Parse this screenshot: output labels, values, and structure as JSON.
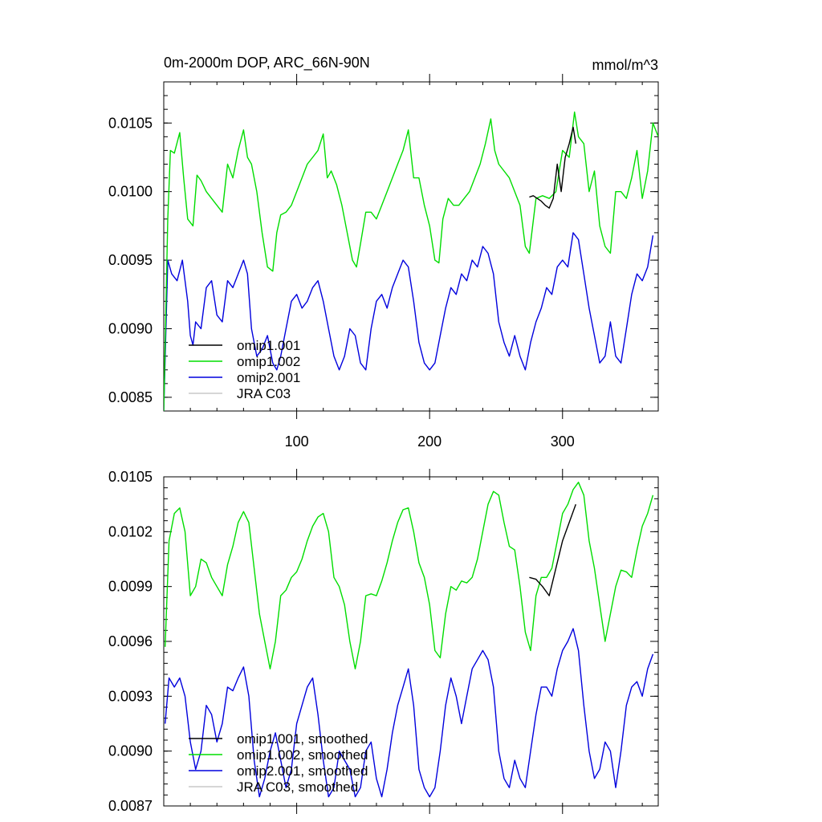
{
  "figure": {
    "title": "0m-2000m DOP, ARC_66N-90N",
    "units": "mmol/m^3"
  },
  "chart_data": [
    {
      "type": "line",
      "title": "0m-2000m DOP, ARC_66N-90N",
      "units_label": "mmol/m^3",
      "xlabel": "",
      "ylabel": "",
      "xlim": [
        0,
        372
      ],
      "ylim": [
        0.0084,
        0.0108
      ],
      "xticks": [
        100,
        200,
        300
      ],
      "xtick_labels": [
        "100",
        "200",
        "300"
      ],
      "yticks": [
        0.0085,
        0.009,
        0.0095,
        0.01,
        0.0105
      ],
      "ytick_labels": [
        "0.0085",
        "0.0090",
        "0.0095",
        "0.0100",
        "0.0105"
      ],
      "grid": false,
      "legend_position": "bottom-left",
      "series": [
        {
          "name": "omip1.001",
          "color": "#000000",
          "x": [
            275,
            278,
            281,
            284,
            287,
            290,
            293,
            296,
            299,
            302,
            305,
            308,
            310
          ],
          "y": [
            0.00996,
            0.00997,
            0.00995,
            0.00993,
            0.0099,
            0.00988,
            0.00995,
            0.0102,
            0.01,
            0.01025,
            0.01035,
            0.01047,
            0.01035
          ]
        },
        {
          "name": "omip1.002",
          "color": "#00dd00",
          "x": [
            0,
            3,
            5,
            8,
            12,
            15,
            18,
            22,
            25,
            28,
            32,
            36,
            40,
            44,
            48,
            52,
            56,
            60,
            63,
            66,
            70,
            74,
            78,
            82,
            85,
            88,
            92,
            96,
            100,
            104,
            108,
            112,
            116,
            120,
            123,
            126,
            130,
            134,
            138,
            142,
            145,
            148,
            152,
            156,
            160,
            164,
            168,
            172,
            176,
            180,
            184,
            188,
            192,
            196,
            200,
            204,
            207,
            210,
            214,
            218,
            222,
            226,
            230,
            234,
            238,
            242,
            246,
            249,
            252,
            256,
            260,
            264,
            268,
            272,
            275,
            280,
            285,
            290,
            295,
            300,
            305,
            309,
            312,
            316,
            320,
            324,
            328,
            332,
            336,
            340,
            344,
            348,
            352,
            356,
            360,
            364,
            368,
            372
          ],
          "y": [
            0.0084,
            0.0098,
            0.0103,
            0.01028,
            0.01043,
            0.0101,
            0.0098,
            0.00975,
            0.01012,
            0.01008,
            0.01,
            0.00995,
            0.0099,
            0.00985,
            0.0102,
            0.0101,
            0.0103,
            0.01045,
            0.01025,
            0.0102,
            0.01,
            0.0097,
            0.00945,
            0.00942,
            0.0097,
            0.00983,
            0.00985,
            0.0099,
            0.01,
            0.0101,
            0.0102,
            0.01025,
            0.0103,
            0.01042,
            0.0101,
            0.01015,
            0.01005,
            0.0099,
            0.0097,
            0.0095,
            0.00945,
            0.00962,
            0.00985,
            0.00985,
            0.0098,
            0.0099,
            0.01,
            0.0101,
            0.0102,
            0.0103,
            0.01045,
            0.0101,
            0.0101,
            0.0099,
            0.00975,
            0.0095,
            0.00948,
            0.0098,
            0.00995,
            0.0099,
            0.0099,
            0.00995,
            0.01,
            0.0101,
            0.0102,
            0.01035,
            0.01053,
            0.0103,
            0.0102,
            0.01015,
            0.0101,
            0.01,
            0.0099,
            0.0096,
            0.00955,
            0.00995,
            0.00997,
            0.00995,
            0.01,
            0.0103,
            0.01025,
            0.01058,
            0.0104,
            0.01035,
            0.01,
            0.01015,
            0.00975,
            0.0096,
            0.00955,
            0.01,
            0.01,
            0.00995,
            0.0101,
            0.0103,
            0.00995,
            0.01015,
            0.0105,
            0.0104
          ]
        },
        {
          "name": "omip2.001",
          "color": "#0000dd",
          "x": [
            0,
            3,
            6,
            10,
            14,
            18,
            20,
            22,
            24,
            28,
            32,
            36,
            40,
            44,
            48,
            52,
            56,
            60,
            63,
            66,
            70,
            74,
            78,
            82,
            85,
            88,
            92,
            96,
            100,
            104,
            108,
            112,
            116,
            120,
            124,
            128,
            132,
            136,
            140,
            144,
            148,
            152,
            156,
            160,
            164,
            168,
            172,
            176,
            180,
            184,
            188,
            192,
            196,
            200,
            204,
            208,
            212,
            216,
            220,
            224,
            228,
            232,
            236,
            240,
            244,
            248,
            252,
            256,
            260,
            264,
            268,
            272,
            276,
            280,
            284,
            288,
            292,
            296,
            300,
            304,
            308,
            312,
            316,
            320,
            324,
            328,
            332,
            336,
            340,
            344,
            348,
            352,
            356,
            360,
            364,
            368
          ],
          "y": [
            0.0084,
            0.0095,
            0.0094,
            0.00935,
            0.0095,
            0.0092,
            0.00895,
            0.00888,
            0.00905,
            0.009,
            0.0093,
            0.00935,
            0.0091,
            0.00905,
            0.00935,
            0.0093,
            0.0094,
            0.0095,
            0.0094,
            0.009,
            0.0088,
            0.00885,
            0.00895,
            0.00875,
            0.0087,
            0.0088,
            0.009,
            0.0092,
            0.00925,
            0.00915,
            0.0092,
            0.0093,
            0.00935,
            0.0092,
            0.009,
            0.0088,
            0.0087,
            0.0088,
            0.009,
            0.00895,
            0.00875,
            0.0087,
            0.009,
            0.0092,
            0.00925,
            0.00915,
            0.0093,
            0.0094,
            0.0095,
            0.00945,
            0.0092,
            0.0089,
            0.00875,
            0.0087,
            0.00875,
            0.00895,
            0.00915,
            0.0093,
            0.00925,
            0.0094,
            0.00935,
            0.0095,
            0.00945,
            0.0096,
            0.00955,
            0.0094,
            0.00905,
            0.0089,
            0.0088,
            0.00895,
            0.0088,
            0.0087,
            0.0089,
            0.00905,
            0.00915,
            0.0093,
            0.00925,
            0.00945,
            0.0095,
            0.00945,
            0.0097,
            0.00965,
            0.0094,
            0.00915,
            0.00895,
            0.00875,
            0.0088,
            0.00905,
            0.0088,
            0.00875,
            0.009,
            0.00925,
            0.0094,
            0.00935,
            0.00945,
            0.00968
          ]
        },
        {
          "name": "JRA C03",
          "color": "#c8c8c8",
          "x": [],
          "y": []
        }
      ]
    },
    {
      "type": "line",
      "title": "",
      "xlabel": "",
      "ylabel": "",
      "xlim": [
        0,
        372
      ],
      "ylim": [
        0.0087,
        0.0105
      ],
      "xticks": [
        100,
        200,
        300
      ],
      "xtick_labels": [
        "",
        "",
        ""
      ],
      "yticks": [
        0.0087,
        0.009,
        0.0093,
        0.0096,
        0.0099,
        0.0102,
        0.0105
      ],
      "ytick_labels": [
        "0.0087",
        "0.0090",
        "0.0093",
        "0.0096",
        "0.0099",
        "0.0102",
        "0.0105"
      ],
      "grid": false,
      "legend_position": "bottom-left",
      "series": [
        {
          "name": "omip1.001, smoothed",
          "color": "#000000",
          "x": [
            275,
            280,
            285,
            290,
            295,
            300,
            305,
            310
          ],
          "y": [
            0.00995,
            0.00994,
            0.0099,
            0.00985,
            0.01,
            0.01015,
            0.01025,
            0.01035
          ]
        },
        {
          "name": "omip1.002, smoothed",
          "color": "#00dd00",
          "x": [
            1,
            4,
            8,
            12,
            16,
            20,
            24,
            28,
            32,
            36,
            40,
            44,
            48,
            52,
            56,
            60,
            64,
            68,
            72,
            76,
            80,
            84,
            88,
            92,
            96,
            100,
            104,
            108,
            112,
            116,
            120,
            124,
            128,
            132,
            136,
            140,
            144,
            148,
            152,
            156,
            160,
            164,
            168,
            172,
            176,
            180,
            184,
            188,
            192,
            196,
            200,
            204,
            208,
            212,
            216,
            220,
            224,
            228,
            232,
            236,
            240,
            244,
            248,
            252,
            256,
            260,
            264,
            268,
            272,
            276,
            280,
            284,
            288,
            292,
            296,
            300,
            304,
            308,
            312,
            316,
            320,
            324,
            328,
            332,
            336,
            340,
            344,
            348,
            352,
            356,
            360,
            364,
            368
          ],
          "y": [
            0.00957,
            0.01015,
            0.0103,
            0.01033,
            0.0102,
            0.00985,
            0.0099,
            0.01005,
            0.01003,
            0.00995,
            0.0099,
            0.00985,
            0.01002,
            0.01012,
            0.01025,
            0.01031,
            0.01025,
            0.01,
            0.00975,
            0.0096,
            0.00945,
            0.0096,
            0.00985,
            0.00988,
            0.00995,
            0.00998,
            0.01005,
            0.01015,
            0.01023,
            0.01028,
            0.0103,
            0.0102,
            0.00995,
            0.0099,
            0.0098,
            0.0096,
            0.00945,
            0.0096,
            0.00985,
            0.00986,
            0.00985,
            0.00993,
            0.01003,
            0.01015,
            0.01025,
            0.01032,
            0.01033,
            0.0102,
            0.01003,
            0.00995,
            0.0098,
            0.00955,
            0.00951,
            0.00975,
            0.0099,
            0.00988,
            0.00993,
            0.00992,
            0.00995,
            0.01005,
            0.0102,
            0.01035,
            0.01042,
            0.0104,
            0.01025,
            0.01012,
            0.0101,
            0.0099,
            0.00965,
            0.00955,
            0.00985,
            0.00995,
            0.00995,
            0.01,
            0.01015,
            0.0103,
            0.01035,
            0.01043,
            0.01047,
            0.0104,
            0.01015,
            0.01,
            0.0098,
            0.0096,
            0.00975,
            0.0099,
            0.00999,
            0.00998,
            0.00995,
            0.0101,
            0.01023,
            0.0103,
            0.0104
          ]
        },
        {
          "name": "omip2.001, smoothed",
          "color": "#0000dd",
          "x": [
            1,
            4,
            8,
            12,
            16,
            20,
            24,
            28,
            32,
            36,
            40,
            44,
            48,
            52,
            56,
            60,
            64,
            68,
            72,
            76,
            80,
            84,
            88,
            92,
            96,
            100,
            104,
            108,
            112,
            116,
            120,
            124,
            128,
            132,
            136,
            140,
            144,
            148,
            152,
            156,
            160,
            164,
            168,
            172,
            176,
            180,
            184,
            188,
            192,
            196,
            200,
            204,
            208,
            212,
            216,
            220,
            224,
            228,
            232,
            236,
            240,
            244,
            248,
            252,
            256,
            260,
            264,
            268,
            272,
            276,
            280,
            284,
            288,
            292,
            296,
            300,
            304,
            308,
            312,
            316,
            320,
            324,
            328,
            332,
            336,
            340,
            344,
            348,
            352,
            356,
            360,
            364,
            368
          ],
          "y": [
            0.00915,
            0.0094,
            0.00935,
            0.0094,
            0.0093,
            0.00905,
            0.0089,
            0.009,
            0.00925,
            0.0092,
            0.00905,
            0.00915,
            0.00935,
            0.00933,
            0.0094,
            0.00946,
            0.0093,
            0.00895,
            0.00875,
            0.00885,
            0.009,
            0.0091,
            0.00895,
            0.0088,
            0.0089,
            0.00915,
            0.00925,
            0.00935,
            0.0094,
            0.0092,
            0.00895,
            0.00875,
            0.0088,
            0.009,
            0.00895,
            0.0089,
            0.00875,
            0.0088,
            0.009,
            0.00905,
            0.00885,
            0.00875,
            0.0089,
            0.0091,
            0.00925,
            0.00935,
            0.00945,
            0.00925,
            0.0089,
            0.0088,
            0.00875,
            0.0088,
            0.009,
            0.00925,
            0.0094,
            0.0093,
            0.00915,
            0.0093,
            0.00945,
            0.0095,
            0.00955,
            0.0095,
            0.00935,
            0.009,
            0.00885,
            0.0088,
            0.00895,
            0.00885,
            0.0088,
            0.009,
            0.0092,
            0.00935,
            0.00935,
            0.0093,
            0.00945,
            0.00955,
            0.0096,
            0.00967,
            0.00955,
            0.00925,
            0.009,
            0.00885,
            0.0089,
            0.00905,
            0.009,
            0.0088,
            0.009,
            0.00925,
            0.00935,
            0.00938,
            0.0093,
            0.00945,
            0.00953
          ]
        },
        {
          "name": "JRA C03, smoothed",
          "color": "#c8c8c8",
          "x": [],
          "y": []
        }
      ]
    }
  ]
}
